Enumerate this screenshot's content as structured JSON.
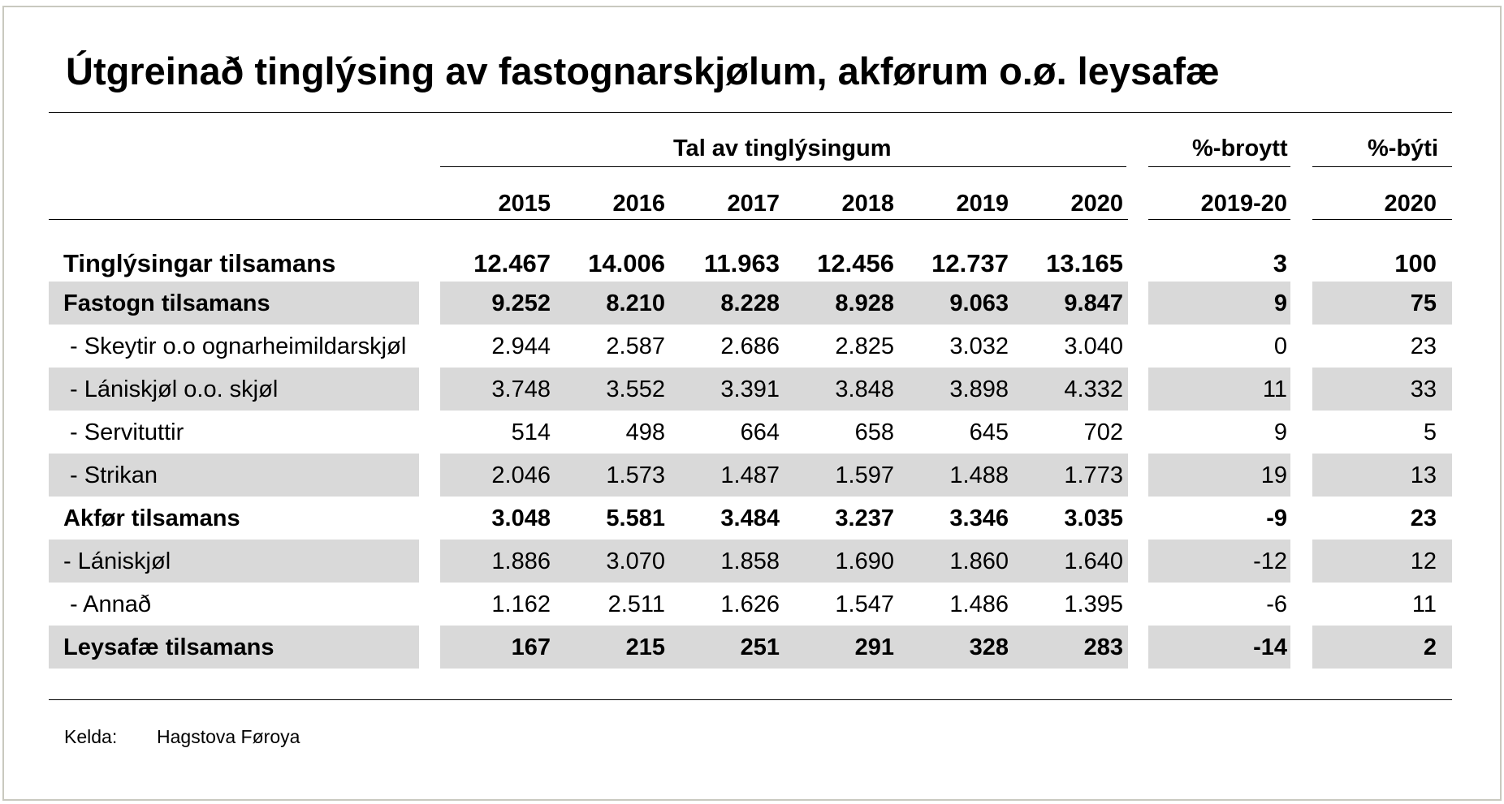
{
  "title": "Útgreinað tinglýsing av fastognarskjølum, akførum o.ø. leysafæ",
  "headers": {
    "group_count": "Tal av tinglýsingum",
    "group_change": "%-broytt",
    "group_share": "%-býti",
    "years": [
      "2015",
      "2016",
      "2017",
      "2018",
      "2019",
      "2020"
    ],
    "change_period": "2019-20",
    "share_year": "2020"
  },
  "rows": [
    {
      "label": "Tinglýsingar tilsamans",
      "values": [
        "12.467",
        "14.006",
        "11.963",
        "12.456",
        "12.737",
        "13.165"
      ],
      "change": "3",
      "share": "100",
      "bold": true,
      "big": true,
      "shaded": false
    },
    {
      "label": "Fastogn tilsamans",
      "values": [
        "9.252",
        "8.210",
        "8.228",
        "8.928",
        "9.063",
        "9.847"
      ],
      "change": "9",
      "share": "75",
      "bold": true,
      "shaded": true
    },
    {
      "label": " - Skeytir o.o ognarheimildarskjøl",
      "values": [
        "2.944",
        "2.587",
        "2.686",
        "2.825",
        "3.032",
        "3.040"
      ],
      "change": "0",
      "share": "23",
      "bold": false,
      "shaded": false
    },
    {
      "label": " - Lániskjøl o.o. skjøl",
      "values": [
        "3.748",
        "3.552",
        "3.391",
        "3.848",
        "3.898",
        "4.332"
      ],
      "change": "11",
      "share": "33",
      "bold": false,
      "shaded": true
    },
    {
      "label": " - Servituttir",
      "values": [
        "514",
        "498",
        "664",
        "658",
        "645",
        "702"
      ],
      "change": "9",
      "share": "5",
      "bold": false,
      "shaded": false
    },
    {
      "label": " - Strikan",
      "values": [
        "2.046",
        "1.573",
        "1.487",
        "1.597",
        "1.488",
        "1.773"
      ],
      "change": "19",
      "share": "13",
      "bold": false,
      "shaded": true
    },
    {
      "label": "Akfør tilsamans",
      "values": [
        "3.048",
        "5.581",
        "3.484",
        "3.237",
        "3.346",
        "3.035"
      ],
      "change": "-9",
      "share": "23",
      "bold": true,
      "shaded": false
    },
    {
      "label": "- Lániskjøl",
      "values": [
        "1.886",
        "3.070",
        "1.858",
        "1.690",
        "1.860",
        "1.640"
      ],
      "change": "-12",
      "share": "12",
      "bold": false,
      "shaded": true
    },
    {
      "label": " - Annað",
      "values": [
        "1.162",
        "2.511",
        "1.626",
        "1.547",
        "1.486",
        "1.395"
      ],
      "change": "-6",
      "share": "11",
      "bold": false,
      "shaded": false
    },
    {
      "label": "Leysafæ tilsamans",
      "values": [
        "167",
        "215",
        "251",
        "291",
        "328",
        "283"
      ],
      "change": "-14",
      "share": "2",
      "bold": true,
      "shaded": true
    }
  ],
  "footer": {
    "source_label": "Kelda:",
    "source_value": "Hagstova Føroya"
  },
  "colors": {
    "stripe": "#d9d9d9",
    "frame": "#c9c9bf"
  }
}
